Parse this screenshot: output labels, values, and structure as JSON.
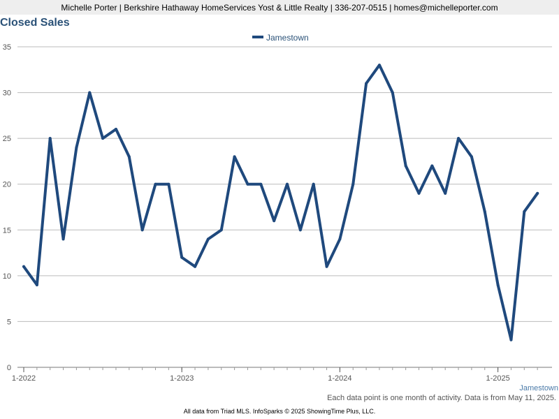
{
  "header": {
    "text": "Michelle Porter | Berkshire Hathaway HomeServices Yost & Little Realty | 336-207-0515 | homes@michelleporter.com"
  },
  "footnote": "Each data point is one month of activity. Data is from May 11, 2025.",
  "credits": "All data from Triad MLS. InfoSparks © 2025 ShowingTime Plus, LLC.",
  "chart_data": {
    "type": "line",
    "title": "Closed Sales",
    "x_axis_corner_label": "Jamestown",
    "x": [
      "2022-01",
      "2022-02",
      "2022-03",
      "2022-04",
      "2022-05",
      "2022-06",
      "2022-07",
      "2022-08",
      "2022-09",
      "2022-10",
      "2022-11",
      "2022-12",
      "2023-01",
      "2023-02",
      "2023-03",
      "2023-04",
      "2023-05",
      "2023-06",
      "2023-07",
      "2023-08",
      "2023-09",
      "2023-10",
      "2023-11",
      "2023-12",
      "2024-01",
      "2024-02",
      "2024-03",
      "2024-04",
      "2024-05",
      "2024-06",
      "2024-07",
      "2024-08",
      "2024-09",
      "2024-10",
      "2024-11",
      "2024-12",
      "2025-01",
      "2025-02",
      "2025-03",
      "2025-04"
    ],
    "series": [
      {
        "name": "Jamestown",
        "color": "#1f497d",
        "values": [
          11,
          9,
          25,
          14,
          24,
          30,
          25,
          26,
          23,
          15,
          20,
          20,
          12,
          11,
          14,
          15,
          23,
          20,
          20,
          16,
          20,
          15,
          20,
          11,
          14,
          20,
          31,
          33,
          30,
          22,
          19,
          22,
          19,
          25,
          23,
          17,
          9,
          3,
          17,
          19
        ]
      }
    ],
    "x_tick_labels": [
      "1-2022",
      "1-2023",
      "1-2024",
      "1-2025"
    ],
    "y_ticks": [
      0,
      5,
      10,
      15,
      20,
      25,
      30,
      35
    ],
    "ylim": [
      0,
      35
    ],
    "grid": true,
    "legend_position": "top-center",
    "colors": {
      "line": "#1f497d",
      "title": "#2b5278",
      "grid": "#bbbbbb"
    }
  }
}
